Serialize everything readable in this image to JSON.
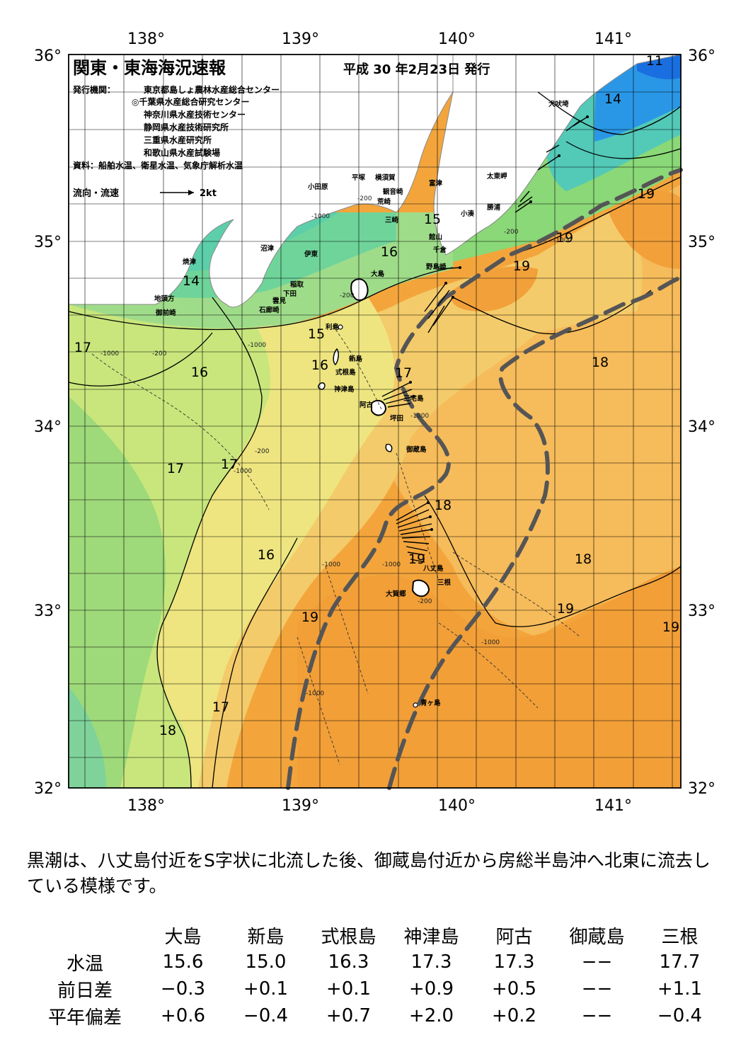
{
  "map": {
    "title": "関東・東海海況速報",
    "issue_date": "平成 30 年2月23日 発行",
    "issuer_label": "発行機関：",
    "issuers": [
      "東京都島しょ農林水産総合センター",
      "◎千葉県水産総合研究センター",
      "神奈川県水産技術センター",
      "静岡県水産技術研究所",
      "三重県水産研究所",
      "和歌山県水産試験場"
    ],
    "sources": "資料：船舶水温、衛星水温、気象庁解析水温",
    "legend": {
      "label": "流向・流速",
      "scale": "2kt"
    },
    "lon_labels": [
      "138°",
      "139°",
      "140°",
      "141°"
    ],
    "lat_labels": [
      "36°",
      "35°",
      "34°",
      "33°",
      "32°"
    ],
    "isotherm_labels": [
      "11",
      "14",
      "14",
      "15",
      "15",
      "16",
      "16",
      "16",
      "16",
      "17",
      "17",
      "17",
      "17",
      "17",
      "18",
      "18",
      "18",
      "19",
      "19",
      "19",
      "19",
      "19",
      "19",
      "19"
    ],
    "depth_labels": [
      "-200",
      "-1000",
      "-200",
      "-1000",
      "-200",
      "-1000",
      "-200",
      "-1000",
      "-1000",
      "-1000",
      "-1000",
      "-200",
      "-1000",
      "-1000",
      "-1000",
      "-200"
    ],
    "place_names": [
      "小田原",
      "平塚",
      "横須賀",
      "観音崎",
      "富津",
      "荒崎",
      "三崎",
      "館山",
      "千倉",
      "野島崎",
      "小湊",
      "勝浦",
      "太東岬",
      "犬吠埼",
      "大島",
      "伊東",
      "沼津",
      "稲取",
      "下田",
      "雲見",
      "石廊崎",
      "焼津",
      "地頭方",
      "御前崎",
      "利島",
      "新島",
      "式根島",
      "神津島",
      "阿古",
      "三宅島",
      "坪田",
      "御蔵島",
      "八丈島",
      "三根",
      "大賀郷",
      "青ヶ島"
    ],
    "colors": {
      "warm": "#f4a640",
      "kuroshio_path": "#555555",
      "coast": "#ffffff",
      "cold": "#3a9be8"
    }
  },
  "summary": "黒潮は、八丈島付近をS字状に北流した後、御蔵島付近から房総半島沖へ北東に流去している模様です。",
  "table": {
    "stations": [
      "大島",
      "新島",
      "式根島",
      "神津島",
      "阿古",
      "御蔵島",
      "三根"
    ],
    "rows": [
      {
        "label": "水温",
        "values": [
          "15.6",
          "15.0",
          "16.3",
          "17.3",
          "17.3",
          "−−",
          "17.7"
        ]
      },
      {
        "label": "前日差",
        "values": [
          "−0.3",
          "+0.1",
          "+0.1",
          "+0.9",
          "+0.5",
          "−−",
          "+1.1"
        ]
      },
      {
        "label": "平年偏差",
        "values": [
          "+0.6",
          "−0.4",
          "+0.7",
          "+2.0",
          "+0.2",
          "−−",
          "−0.4"
        ]
      }
    ]
  }
}
